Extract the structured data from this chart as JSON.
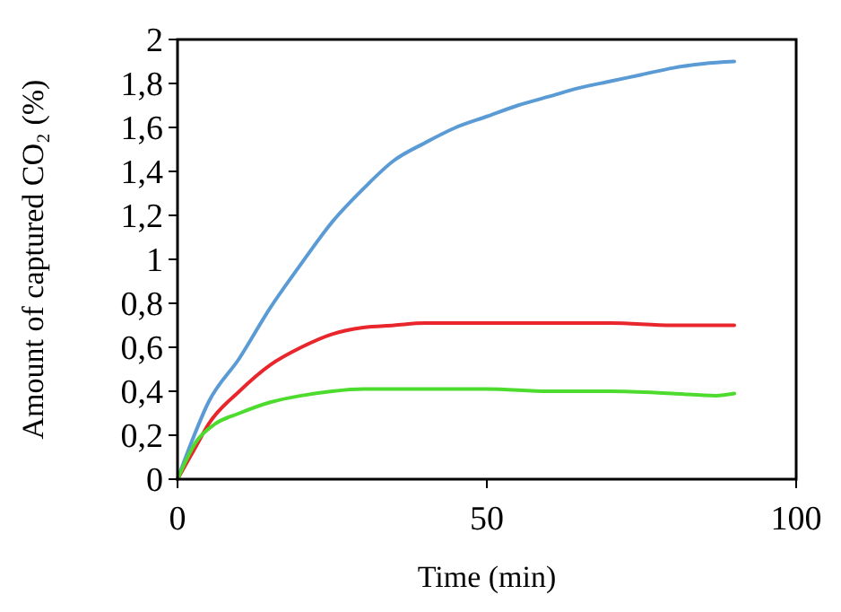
{
  "chart_data": {
    "type": "line",
    "xlabel": "Time (min)",
    "ylabel": "Amount of captured CO₂ (%)",
    "xlim": [
      0,
      100
    ],
    "xticks": [
      0,
      50,
      100
    ],
    "ylim": [
      0,
      2
    ],
    "yticks": [
      0,
      {
        "value": 0.2,
        "label": "0,2"
      },
      {
        "value": 0.4,
        "label": "0,4"
      },
      {
        "value": 0.6,
        "label": "0,6"
      },
      {
        "value": 0.8,
        "label": "0,8"
      },
      1,
      {
        "value": 1.2,
        "label": "1,2"
      },
      {
        "value": 1.4,
        "label": "1,4"
      },
      {
        "value": 1.6,
        "label": "1,6"
      },
      {
        "value": 1.8,
        "label": "1,8"
      },
      2
    ],
    "grid": false,
    "series": [
      {
        "color": "#5b9bd5",
        "x": [
          0,
          2,
          5,
          10,
          15,
          20,
          25,
          30,
          35,
          40,
          45,
          50,
          55,
          60,
          65,
          70,
          75,
          80,
          85,
          90
        ],
        "values": [
          0,
          0.15,
          0.35,
          0.55,
          0.78,
          0.98,
          1.17,
          1.32,
          1.45,
          1.53,
          1.6,
          1.65,
          1.7,
          1.74,
          1.78,
          1.81,
          1.84,
          1.87,
          1.89,
          1.9
        ]
      },
      {
        "color": "#e8262b",
        "x": [
          0,
          3,
          5,
          10,
          15,
          20,
          25,
          30,
          35,
          40,
          50,
          60,
          70,
          80,
          90
        ],
        "values": [
          0,
          0.15,
          0.25,
          0.4,
          0.52,
          0.6,
          0.66,
          0.69,
          0.7,
          0.71,
          0.71,
          0.71,
          0.71,
          0.7,
          0.7
        ]
      },
      {
        "color": "#4ddc2e",
        "x": [
          0,
          3,
          6,
          10,
          15,
          20,
          25,
          30,
          35,
          40,
          50,
          60,
          70,
          80,
          87,
          90
        ],
        "values": [
          0,
          0.17,
          0.25,
          0.3,
          0.35,
          0.38,
          0.4,
          0.41,
          0.41,
          0.41,
          0.41,
          0.4,
          0.4,
          0.39,
          0.38,
          0.39
        ]
      }
    ]
  }
}
